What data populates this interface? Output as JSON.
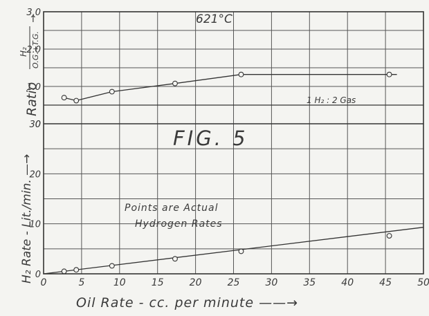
{
  "chart_data": {
    "type": "line",
    "figure_label": "FIG. 5",
    "temperature_label": "621°C",
    "xlabel": "Oil Rate - cc. per minute ——→",
    "xlim": [
      0,
      50
    ],
    "x_ticks": [
      "0",
      "5",
      "10",
      "15",
      "20",
      "25",
      "30",
      "35",
      "40",
      "45",
      "50"
    ],
    "grid": true,
    "panels": [
      {
        "name": "ratio",
        "ylabel_main": "Ratio",
        "ylabel_frac_num": "H₂",
        "ylabel_frac_den": "O.G.+T.G.",
        "ylabel_arrow": "↑",
        "ylim": [
          0,
          3.0
        ],
        "y_ticks": [
          "0",
          "1.0",
          "2.0",
          "3.0"
        ],
        "series": [
          {
            "x": [
              2.7,
              4.3,
              9.0,
              17.3,
              26.0,
              45.5
            ],
            "y": [
              0.7,
              0.62,
              0.86,
              1.08,
              1.32,
              1.32
            ],
            "line_x": [
              2.7,
              4.3,
              9.0,
              17.3,
              26.0,
              46.5
            ],
            "line_y": [
              0.7,
              0.62,
              0.86,
              1.08,
              1.32,
              1.32
            ]
          }
        ],
        "reference_line": {
          "y": 0.5,
          "label": "1 H₂ : 2 Gas"
        }
      },
      {
        "name": "h2_rate",
        "ylabel_main": "H₂ Rate - Lit./min. —→",
        "ylim": [
          0,
          30
        ],
        "y_ticks": [
          "0",
          "10",
          "20",
          "30"
        ],
        "annotation": [
          "Points are Actual",
          "Hydrogen Rates"
        ],
        "series": [
          {
            "x": [
              2.7,
              4.3,
              9.0,
              17.3,
              26.0,
              45.5
            ],
            "y": [
              0.5,
              0.8,
              1.6,
              3.0,
              4.5,
              7.6
            ],
            "line_x": [
              0,
              50
            ],
            "line_y": [
              0,
              9.3
            ]
          }
        ]
      }
    ]
  }
}
